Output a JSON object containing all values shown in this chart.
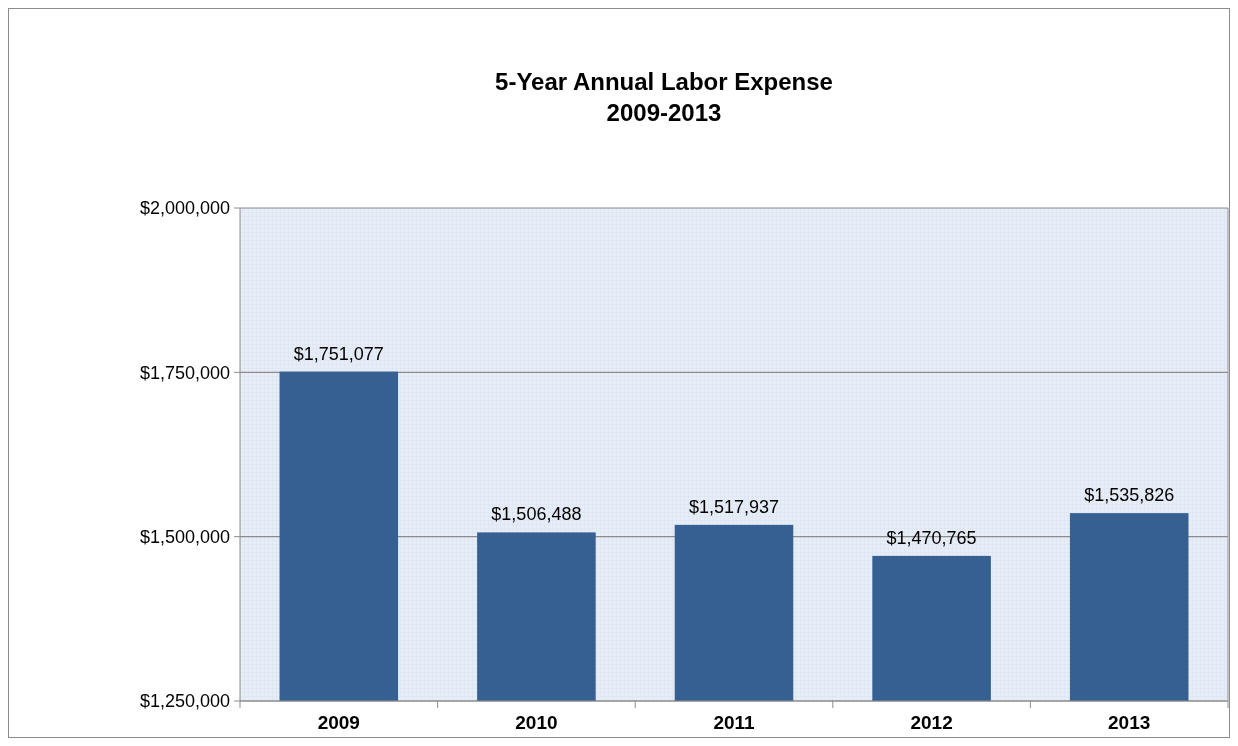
{
  "chart_data": {
    "type": "bar",
    "title": "5-Year Annual Labor Expense",
    "subtitle": "2009-2013",
    "categories": [
      "2009",
      "2010",
      "2011",
      "2012",
      "2013"
    ],
    "values": [
      1751077,
      1506488,
      1517937,
      1470765,
      1535826
    ],
    "value_labels": [
      "$1,751,077",
      "$1,506,488",
      "$1,517,937",
      "$1,470,765",
      "$1,535,826"
    ],
    "color": "#366092",
    "ylim": [
      1250000,
      2000000
    ],
    "yticks": [
      {
        "value": 1250000,
        "label": "$1,250,000"
      },
      {
        "value": 1500000,
        "label": "$1,500,000"
      },
      {
        "value": 1750000,
        "label": "$1,750,000"
      },
      {
        "value": 2000000,
        "label": "$2,000,000"
      }
    ],
    "grid": "y"
  }
}
